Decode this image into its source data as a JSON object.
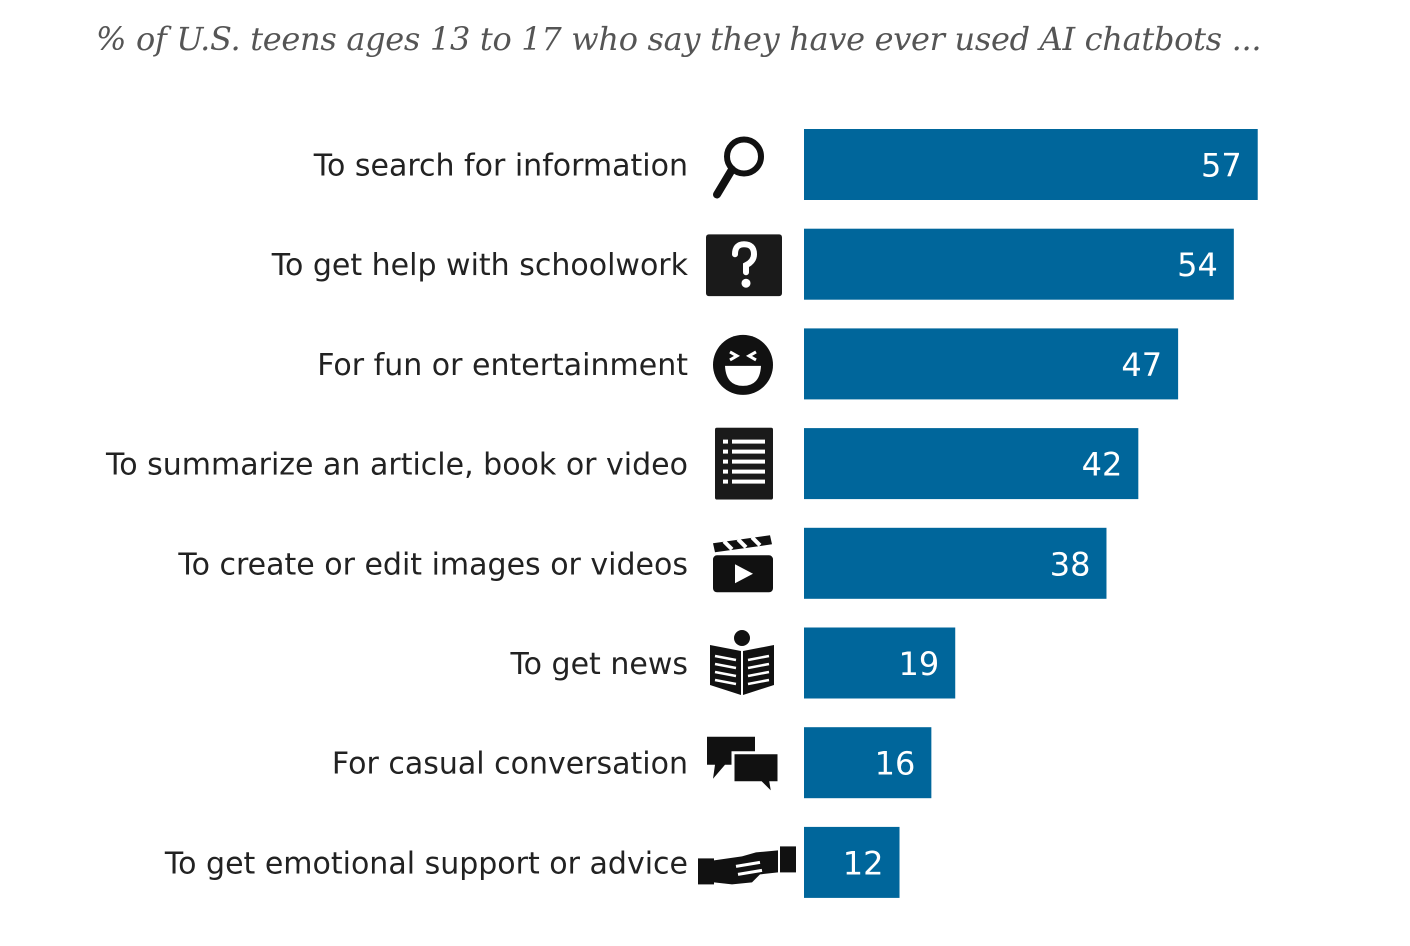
{
  "chart_data": {
    "type": "bar",
    "orientation": "horizontal",
    "title": "",
    "subtitle": "% of U.S. teens ages 13 to 17 who say they have ever used AI chatbots ...",
    "xlabel": "",
    "ylabel": "",
    "categories": [
      "To search for information",
      "To get help with schoolwork",
      "For fun or entertainment",
      "To summarize an article, book or video",
      "To create or edit images or videos",
      "To get news",
      "For casual conversation",
      "To get emotional support or advice"
    ],
    "icons": [
      "magnifier-icon",
      "question-box-icon",
      "laughing-face-icon",
      "list-document-icon",
      "clapperboard-icon",
      "newspaper-reader-icon",
      "chat-bubbles-icon",
      "handshake-icon"
    ],
    "values": [
      57,
      54,
      47,
      42,
      38,
      19,
      16,
      12
    ],
    "xlim": [
      0,
      100
    ],
    "grid": false,
    "legend": "none",
    "bar_color": "#00669b",
    "label_color": "#ffffff"
  }
}
